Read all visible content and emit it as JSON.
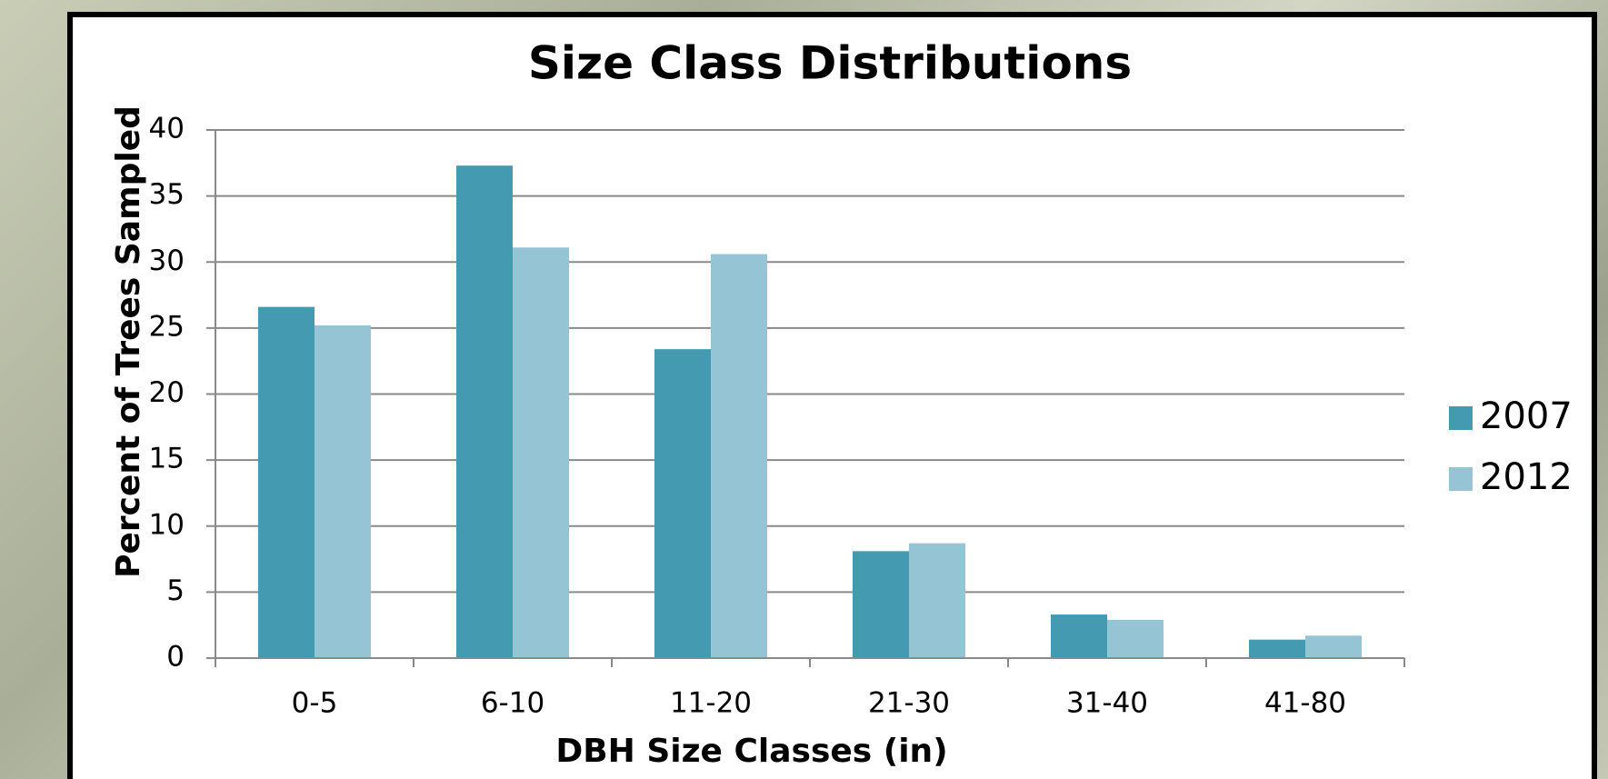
{
  "chart_data": {
    "type": "bar",
    "title": "Size Class Distributions",
    "x_label": "DBH Size Classes (in)",
    "y_label": "Percent of Trees Sampled",
    "categories": [
      "0-5",
      "6-10",
      "11-20",
      "21-30",
      "31-40",
      "41-80"
    ],
    "series": [
      {
        "name": "2007",
        "color": "#449bb1",
        "values": [
          26.6,
          37.3,
          23.4,
          8.1,
          3.3,
          1.4
        ]
      },
      {
        "name": "2012",
        "color": "#95c4d5",
        "values": [
          25.2,
          31.1,
          30.6,
          8.7,
          2.9,
          1.7
        ]
      }
    ],
    "ylim": [
      0,
      40
    ],
    "yticks": [
      0,
      5,
      10,
      15,
      20,
      25,
      30,
      35,
      40
    ],
    "grid": true,
    "legend": "right"
  }
}
